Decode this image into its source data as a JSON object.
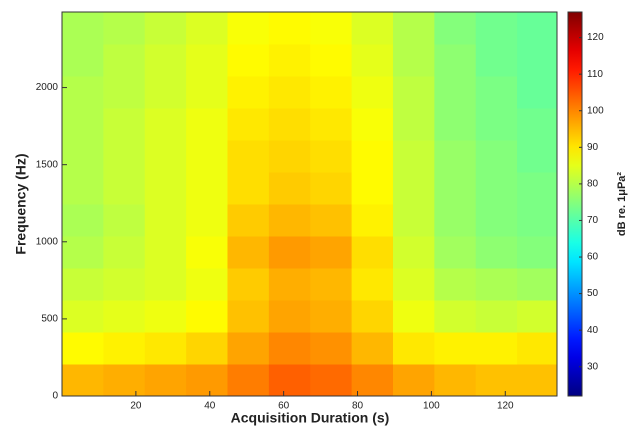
{
  "chart_data": {
    "type": "heatmap",
    "xlabel": "Acquisition Duration (s)",
    "ylabel": "Frequency (Hz)",
    "colorbar_label": "dB re. 1μPa²",
    "colormap": "jet",
    "x": [
      5.6,
      16.8,
      28,
      39.2,
      50.4,
      61.6,
      72.8,
      84,
      95.2,
      106.4,
      117.6,
      128.8
    ],
    "y": [
      104,
      311,
      519,
      726,
      934,
      1141,
      1349,
      1556,
      1764,
      1971,
      2179,
      2386
    ],
    "z": [
      [
        95,
        96,
        97,
        98,
        101,
        104,
        103,
        100,
        97,
        95,
        94,
        94
      ],
      [
        88,
        89,
        90,
        92,
        97,
        100,
        99,
        95,
        90,
        89,
        89,
        90
      ],
      [
        84,
        85,
        86,
        88,
        94,
        97,
        96,
        92,
        86,
        83,
        82,
        83
      ],
      [
        82,
        83,
        84,
        86,
        93,
        96,
        95,
        90,
        84,
        80,
        79,
        78
      ],
      [
        80,
        82,
        84,
        87,
        95,
        98,
        97,
        91,
        83,
        78,
        76,
        75
      ],
      [
        79,
        81,
        84,
        86,
        93,
        95,
        94,
        89,
        82,
        77,
        75,
        74
      ],
      [
        80,
        82,
        84,
        86,
        91,
        93,
        92,
        88,
        82,
        77,
        75,
        74
      ],
      [
        80,
        82,
        84,
        86,
        91,
        92,
        91,
        88,
        82,
        77,
        75,
        73
      ],
      [
        80,
        82,
        84,
        86,
        90,
        91,
        90,
        87,
        81,
        76,
        74,
        73
      ],
      [
        80,
        81,
        83,
        85,
        89,
        90,
        89,
        86,
        81,
        76,
        74,
        72
      ],
      [
        79,
        81,
        83,
        85,
        88,
        89,
        88,
        85,
        80,
        76,
        73,
        72
      ],
      [
        79,
        80,
        82,
        84,
        87,
        88,
        87,
        84,
        80,
        75,
        73,
        72
      ]
    ],
    "xlim": [
      0,
      134
    ],
    "xticks": [
      20,
      40,
      60,
      80,
      100,
      120
    ],
    "ylim": [
      0,
      2490
    ],
    "yticks": [
      0,
      500,
      1000,
      1500,
      2000
    ],
    "clim": [
      22,
      127
    ],
    "cticks": [
      30,
      40,
      50,
      60,
      70,
      80,
      90,
      100,
      110,
      120
    ]
  }
}
